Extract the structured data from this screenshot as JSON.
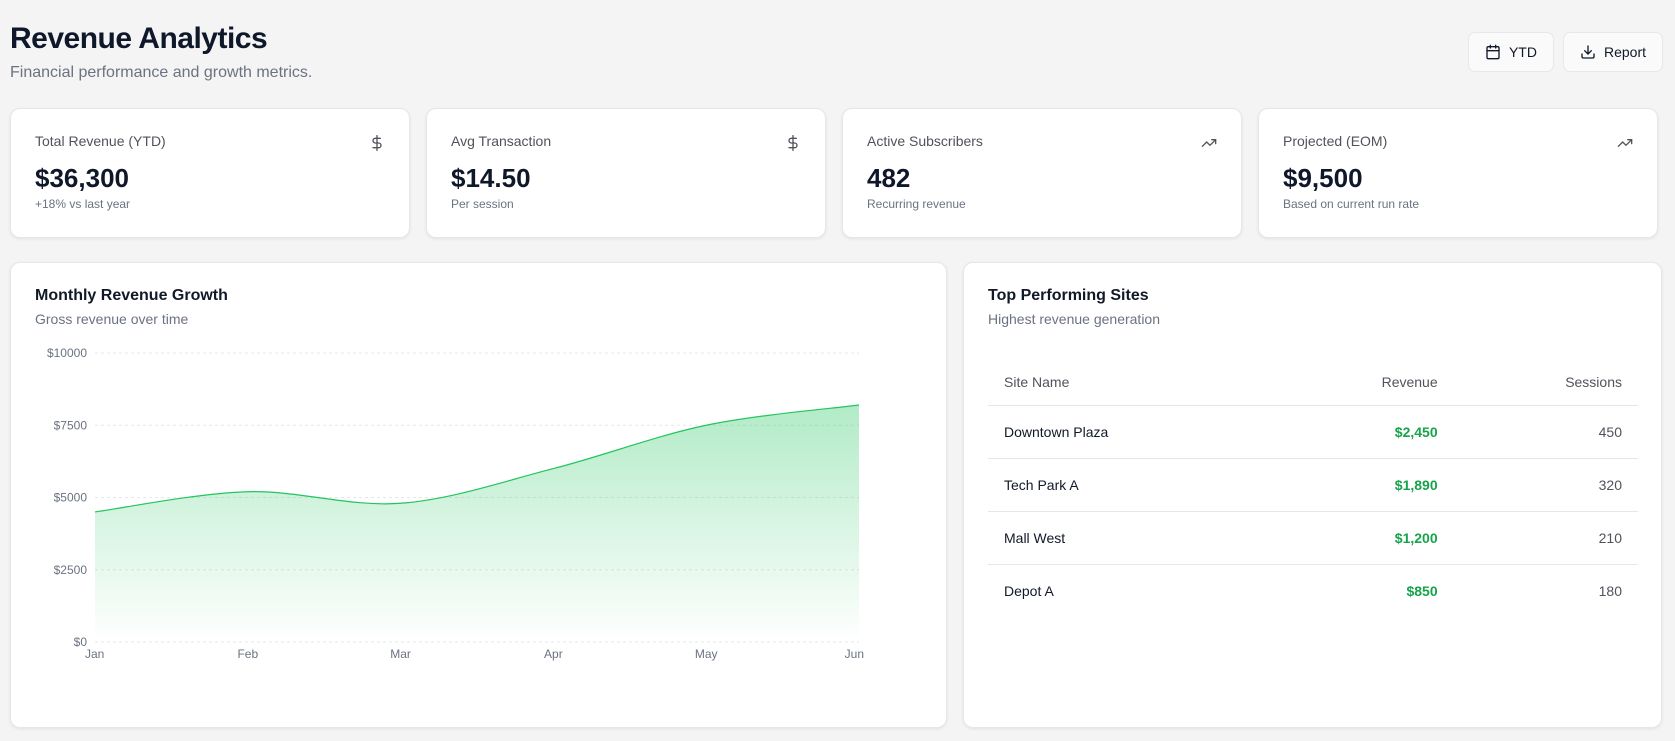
{
  "header": {
    "title": "Revenue Analytics",
    "subtitle": "Financial performance and growth metrics."
  },
  "actions": {
    "ytd_label": "YTD",
    "report_label": "Report"
  },
  "kpis": [
    {
      "label": "Total Revenue (YTD)",
      "value": "$36,300",
      "sub": "+18% vs last year",
      "icon": "dollar-icon"
    },
    {
      "label": "Avg Transaction",
      "value": "$14.50",
      "sub": "Per session",
      "icon": "dollar-icon"
    },
    {
      "label": "Active Subscribers",
      "value": "482",
      "sub": "Recurring revenue",
      "icon": "trending-up-icon"
    },
    {
      "label": "Projected (EOM)",
      "value": "$9,500",
      "sub": "Based on current run rate",
      "icon": "trending-up-icon"
    }
  ],
  "chart_card": {
    "title": "Monthly Revenue Growth",
    "subtitle": "Gross revenue over time"
  },
  "chart_data": {
    "type": "area",
    "categories": [
      "Jan",
      "Feb",
      "Mar",
      "Apr",
      "May",
      "Jun"
    ],
    "values": [
      4500,
      5200,
      4800,
      6000,
      7500,
      8200
    ],
    "ylim": [
      0,
      10000
    ],
    "yticks": [
      "$0",
      "$2500",
      "$5000",
      "$7500",
      "$10000"
    ],
    "ytick_values": [
      0,
      2500,
      5000,
      7500,
      10000
    ],
    "color": "#22c55e",
    "grid": true
  },
  "sites_card": {
    "title": "Top Performing Sites",
    "subtitle": "Highest revenue generation",
    "columns": [
      "Site Name",
      "Revenue",
      "Sessions"
    ],
    "rows": [
      {
        "name": "Downtown Plaza",
        "revenue": "$2,450",
        "sessions": "450"
      },
      {
        "name": "Tech Park A",
        "revenue": "$1,890",
        "sessions": "320"
      },
      {
        "name": "Mall West",
        "revenue": "$1,200",
        "sessions": "210"
      },
      {
        "name": "Depot A",
        "revenue": "$850",
        "sessions": "180"
      }
    ]
  }
}
